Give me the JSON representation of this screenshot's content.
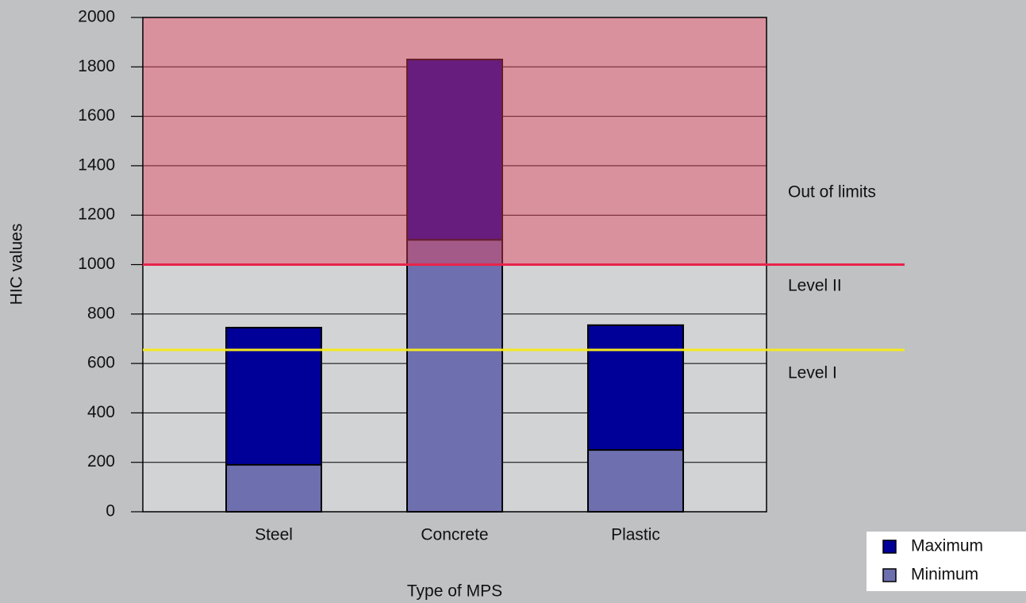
{
  "chart_data": {
    "type": "bar",
    "x_label": "Type of MPS",
    "y_label": "HIC values",
    "categories": [
      "Steel",
      "Concrete",
      "Plastic"
    ],
    "series": [
      {
        "name": "Maximum",
        "color": "#000099",
        "values": [
          745,
          1830,
          755
        ]
      },
      {
        "name": "Minimum",
        "color": "#6e6fae",
        "values": [
          190,
          1100,
          250
        ]
      }
    ],
    "ylim": [
      0,
      2000
    ],
    "yticks": [
      0,
      200,
      400,
      600,
      800,
      1000,
      1200,
      1400,
      1600,
      1800,
      2000
    ],
    "grid": true,
    "reference_lines": [
      {
        "value": 1000,
        "color": "#e8234a"
      },
      {
        "value": 655,
        "color": "#f4e91c"
      }
    ],
    "zone_labels": [
      "Out of limits",
      "Level II",
      "Level I"
    ],
    "out_of_limits_color": "#e4405c",
    "legend": "bottom-right"
  }
}
